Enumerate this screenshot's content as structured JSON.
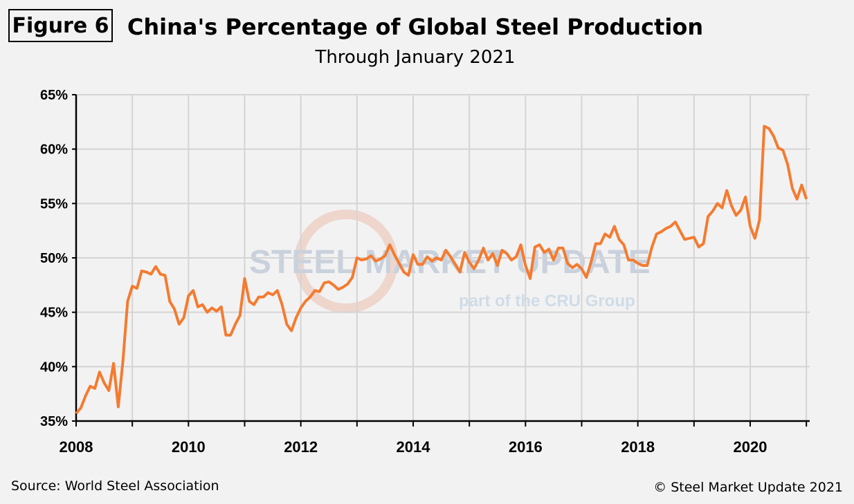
{
  "figure_label": "Figure 6",
  "source": "Source: World Steel Association",
  "copyright": "© Steel Market Update 2021",
  "watermark": {
    "line1": "STEEL MARKET UPDATE",
    "line2": "part of the CRU Group"
  },
  "chart_data": {
    "type": "line",
    "title": "China's Percentage of Global Steel Production",
    "subtitle": "Through January 2021",
    "xlabel": "",
    "ylabel": "",
    "xlim": [
      "2008-01",
      "2021-01"
    ],
    "ylim": [
      35,
      65
    ],
    "x_ticks": [
      "2008",
      "2010",
      "2012",
      "2014",
      "2016",
      "2018",
      "2020"
    ],
    "y_ticks": [
      "35%",
      "40%",
      "45%",
      "50%",
      "55%",
      "60%",
      "65%"
    ],
    "grid": true,
    "line_color": "#f47b30",
    "start": "2008-01",
    "frequency": "monthly",
    "values": [
      35.7,
      36.2,
      37.3,
      38.2,
      38.0,
      39.5,
      38.5,
      37.8,
      40.3,
      36.3,
      40.5,
      46.0,
      47.4,
      47.2,
      48.8,
      48.7,
      48.5,
      49.2,
      48.5,
      48.4,
      46.0,
      45.3,
      43.9,
      44.5,
      46.5,
      47.0,
      45.5,
      45.7,
      45.0,
      45.4,
      45.1,
      45.5,
      42.9,
      42.9,
      43.9,
      44.7,
      48.1,
      46.0,
      45.7,
      46.4,
      46.4,
      46.8,
      46.6,
      47.0,
      45.7,
      43.9,
      43.3,
      44.5,
      45.4,
      46.0,
      46.4,
      47.0,
      46.9,
      47.7,
      47.8,
      47.5,
      47.1,
      47.3,
      47.6,
      48.2,
      50.0,
      49.8,
      49.9,
      50.2,
      49.7,
      49.9,
      50.2,
      51.2,
      50.3,
      49.5,
      48.7,
      48.4,
      50.3,
      49.4,
      49.4,
      50.1,
      49.7,
      50.0,
      49.8,
      50.7,
      50.1,
      49.4,
      48.7,
      50.5,
      49.6,
      49.0,
      49.8,
      50.9,
      49.8,
      50.4,
      49.3,
      50.7,
      50.4,
      49.8,
      50.1,
      51.2,
      49.3,
      48.1,
      51.0,
      51.2,
      50.5,
      50.8,
      49.8,
      50.9,
      50.9,
      49.5,
      49.1,
      49.4,
      49.0,
      48.2,
      49.6,
      51.3,
      51.3,
      52.2,
      51.9,
      52.9,
      51.7,
      51.2,
      49.8,
      49.8,
      49.5,
      49.3,
      49.3,
      51.0,
      52.2,
      52.4,
      52.7,
      52.9,
      53.3,
      52.5,
      51.7,
      51.8,
      51.9,
      51.0,
      51.3,
      53.8,
      54.3,
      55.0,
      54.6,
      56.2,
      54.8,
      53.9,
      54.4,
      55.6,
      52.9,
      51.8,
      53.5,
      62.1,
      61.9,
      61.2,
      60.1,
      59.9,
      58.6,
      56.4,
      55.4,
      56.7,
      55.4
    ]
  }
}
